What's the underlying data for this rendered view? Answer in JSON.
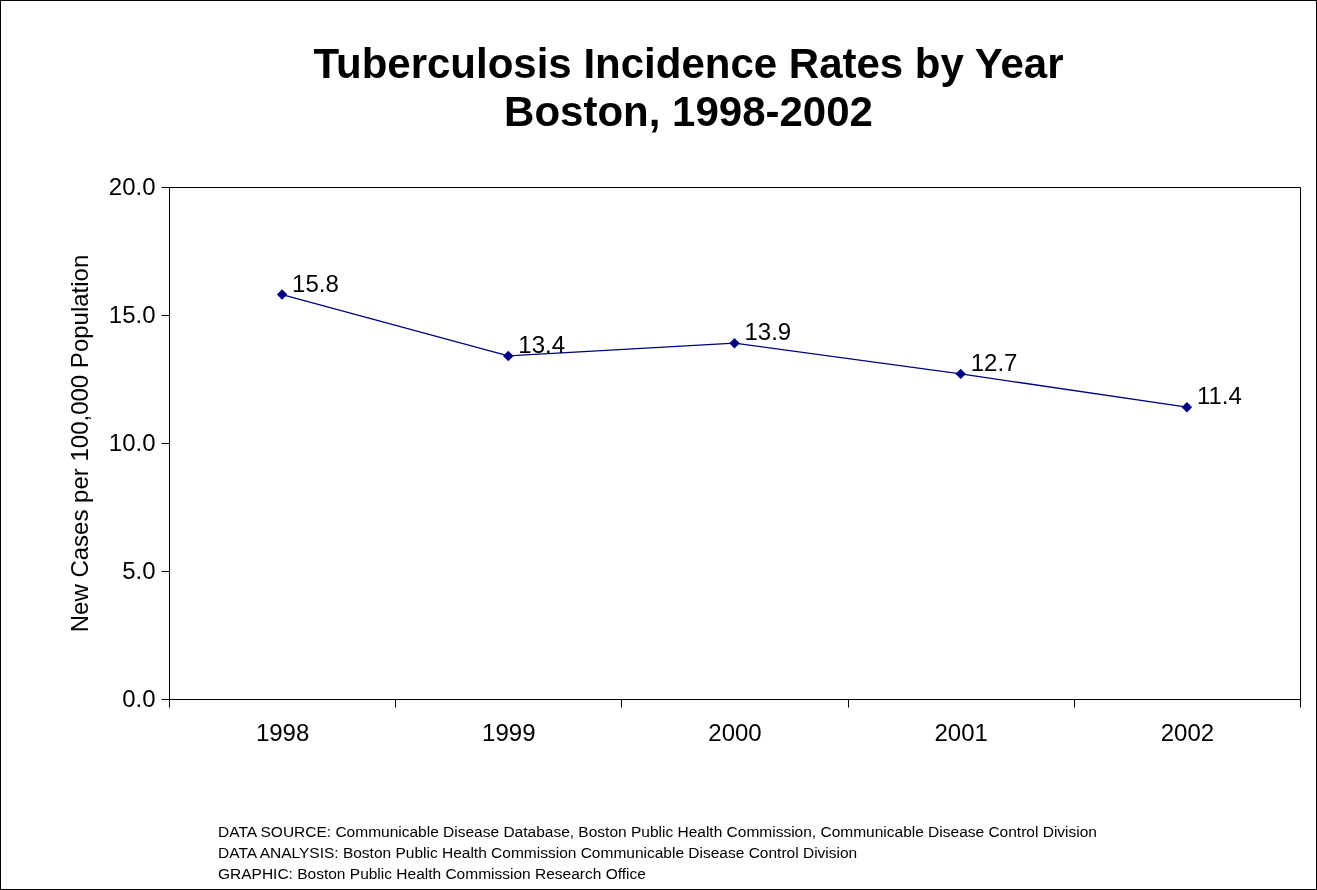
{
  "chart_data": {
    "type": "line",
    "title": "Tuberculosis Incidence Rates by Year",
    "subtitle": "Boston, 1998-2002",
    "ylabel": "New Cases per 100,000 Population",
    "categories": [
      "1998",
      "1999",
      "2000",
      "2001",
      "2002"
    ],
    "series": [
      {
        "color": "#000080",
        "values": [
          15.8,
          13.4,
          13.9,
          12.7,
          11.4
        ]
      }
    ],
    "ylim": [
      0,
      20
    ],
    "yticks": [
      {
        "value": 0,
        "label": "0.0"
      },
      {
        "value": 5,
        "label": "5.0"
      },
      {
        "value": 10,
        "label": "10.0"
      },
      {
        "value": 15,
        "label": "15.0"
      },
      {
        "value": 20,
        "label": "20.0"
      }
    ],
    "data_labels": true,
    "marker": "diamond",
    "grid": false,
    "annotations": [
      "DATA SOURCE:  Communicable Disease Database, Boston Public Health Commission, Communicable Disease Control Division",
      "DATA ANALYSIS:  Boston Public Health Commission Communicable Disease Control Division",
      "GRAPHIC:  Boston Public Health Commission Research Office"
    ]
  }
}
